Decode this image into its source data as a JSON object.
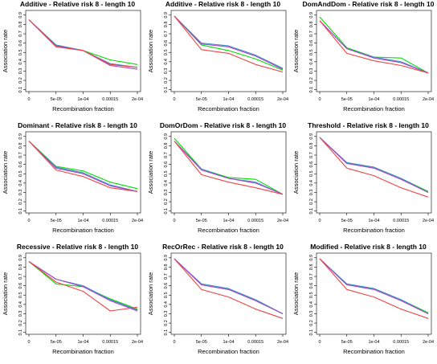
{
  "chart_data": [
    {
      "type": "line",
      "title": "Additive  - Relative risk 8 - length 10",
      "xlabel": "Recombination fraction",
      "ylabel": "Association rate",
      "categories": [
        "0",
        "5e-05",
        "1e-04",
        "0.00015",
        "2e-04"
      ],
      "ylim": [
        0.08,
        0.95
      ],
      "yticks": [
        "0.1",
        "0.2",
        "0.3",
        "0.4",
        "0.5",
        "0.6",
        "0.7",
        "0.8",
        "0.9"
      ],
      "series": [
        {
          "color": "#00dd00",
          "values": [
            0.85,
            0.58,
            0.52,
            0.42,
            0.37
          ]
        },
        {
          "color": "#3e8ec5",
          "values": [
            0.85,
            0.58,
            0.52,
            0.38,
            0.34
          ]
        },
        {
          "color": "#aa44cc",
          "values": [
            0.85,
            0.57,
            0.52,
            0.36,
            0.32
          ]
        },
        {
          "color": "#ee4444",
          "values": [
            0.85,
            0.56,
            0.52,
            0.37,
            0.34
          ]
        }
      ]
    },
    {
      "type": "line",
      "title": "Additive  - Relative risk 8 - length 10",
      "xlabel": "Recombination fraction",
      "ylabel": "Association rate",
      "categories": [
        "0",
        "5e-05",
        "1e-04",
        "0.00015",
        "2e-04"
      ],
      "ylim": [
        0.08,
        0.95
      ],
      "yticks": [
        "0.1",
        "0.2",
        "0.3",
        "0.4",
        "0.5",
        "0.6",
        "0.7",
        "0.8",
        "0.9"
      ],
      "series": [
        {
          "color": "#00dd00",
          "values": [
            0.89,
            0.58,
            0.52,
            0.43,
            0.31
          ]
        },
        {
          "color": "#3e8ec5",
          "values": [
            0.89,
            0.6,
            0.57,
            0.47,
            0.33
          ]
        },
        {
          "color": "#aa44cc",
          "values": [
            0.89,
            0.59,
            0.56,
            0.46,
            0.32
          ]
        },
        {
          "color": "#ee4444",
          "values": [
            0.89,
            0.53,
            0.49,
            0.37,
            0.29
          ]
        }
      ]
    },
    {
      "type": "line",
      "title": "DomAndDom  - Relative risk 8 - length 10",
      "xlabel": "Recombination fraction",
      "ylabel": "Association rate",
      "categories": [
        "0",
        "5e-05",
        "1e-04",
        "0.00015",
        "2e-04"
      ],
      "ylim": [
        0.08,
        0.95
      ],
      "yticks": [
        "0.1",
        "0.2",
        "0.3",
        "0.4",
        "0.5",
        "0.6",
        "0.7",
        "0.8",
        "0.9"
      ],
      "series": [
        {
          "color": "#00dd00",
          "values": [
            0.88,
            0.55,
            0.45,
            0.44,
            0.28
          ]
        },
        {
          "color": "#3e8ec5",
          "values": [
            0.84,
            0.54,
            0.45,
            0.4,
            0.28
          ]
        },
        {
          "color": "#aa44cc",
          "values": [
            0.84,
            0.54,
            0.44,
            0.39,
            0.28
          ]
        },
        {
          "color": "#ee4444",
          "values": [
            0.84,
            0.49,
            0.41,
            0.36,
            0.28
          ]
        }
      ]
    },
    {
      "type": "line",
      "title": "Dominant  - Relative risk 8 - length 10",
      "xlabel": "Recombination fraction",
      "ylabel": "Association rate",
      "categories": [
        "0",
        "5e-05",
        "1e-04",
        "0.00015",
        "2e-04"
      ],
      "ylim": [
        0.08,
        0.95
      ],
      "yticks": [
        "0.1",
        "0.2",
        "0.3",
        "0.4",
        "0.5",
        "0.6",
        "0.7",
        "0.8",
        "0.9"
      ],
      "series": [
        {
          "color": "#00dd00",
          "values": [
            0.85,
            0.58,
            0.53,
            0.41,
            0.34
          ]
        },
        {
          "color": "#3e8ec5",
          "values": [
            0.85,
            0.57,
            0.51,
            0.38,
            0.31
          ]
        },
        {
          "color": "#aa44cc",
          "values": [
            0.85,
            0.56,
            0.5,
            0.37,
            0.31
          ]
        },
        {
          "color": "#ee4444",
          "values": [
            0.85,
            0.54,
            0.47,
            0.35,
            0.31
          ]
        }
      ]
    },
    {
      "type": "line",
      "title": "DomOrDom  - Relative risk 8 - length 10",
      "xlabel": "Recombination fraction",
      "ylabel": "Association rate",
      "categories": [
        "0",
        "5e-05",
        "1e-04",
        "0.00015",
        "2e-04"
      ],
      "ylim": [
        0.08,
        0.95
      ],
      "yticks": [
        "0.1",
        "0.2",
        "0.3",
        "0.4",
        "0.5",
        "0.6",
        "0.7",
        "0.8",
        "0.9"
      ],
      "series": [
        {
          "color": "#00dd00",
          "values": [
            0.88,
            0.55,
            0.46,
            0.44,
            0.28
          ]
        },
        {
          "color": "#3e8ec5",
          "values": [
            0.85,
            0.55,
            0.45,
            0.41,
            0.28
          ]
        },
        {
          "color": "#aa44cc",
          "values": [
            0.85,
            0.54,
            0.45,
            0.4,
            0.28
          ]
        },
        {
          "color": "#ee4444",
          "values": [
            0.85,
            0.49,
            0.41,
            0.35,
            0.28
          ]
        }
      ]
    },
    {
      "type": "line",
      "title": "Threshold  - Relative risk 8 - length 10",
      "xlabel": "Recombination fraction",
      "ylabel": "Association rate",
      "categories": [
        "0",
        "5e-05",
        "1e-04",
        "0.00015",
        "2e-04"
      ],
      "ylim": [
        0.08,
        0.95
      ],
      "yticks": [
        "0.1",
        "0.2",
        "0.3",
        "0.4",
        "0.5",
        "0.6",
        "0.7",
        "0.8",
        "0.9"
      ],
      "series": [
        {
          "color": "#00dd00",
          "values": [
            0.89,
            0.61,
            0.57,
            0.45,
            0.31
          ]
        },
        {
          "color": "#3e8ec5",
          "values": [
            0.89,
            0.62,
            0.57,
            0.45,
            0.3
          ]
        },
        {
          "color": "#aa44cc",
          "values": [
            0.89,
            0.61,
            0.56,
            0.44,
            0.3
          ]
        },
        {
          "color": "#ee4444",
          "values": [
            0.89,
            0.56,
            0.48,
            0.35,
            0.25
          ]
        }
      ]
    },
    {
      "type": "line",
      "title": "Recessive  - Relative risk 8 - length 10",
      "xlabel": "Recombination fraction",
      "ylabel": "Association rate",
      "categories": [
        "0",
        "5e-05",
        "1e-04",
        "0.00015",
        "2e-04"
      ],
      "ylim": [
        0.08,
        0.95
      ],
      "yticks": [
        "0.1",
        "0.2",
        "0.3",
        "0.4",
        "0.5",
        "0.6",
        "0.7",
        "0.8",
        "0.9"
      ],
      "series": [
        {
          "color": "#00dd00",
          "values": [
            0.86,
            0.62,
            0.59,
            0.46,
            0.35
          ]
        },
        {
          "color": "#3e8ec5",
          "values": [
            0.86,
            0.67,
            0.6,
            0.45,
            0.34
          ]
        },
        {
          "color": "#aa44cc",
          "values": [
            0.86,
            0.67,
            0.59,
            0.44,
            0.33
          ]
        },
        {
          "color": "#ee4444",
          "values": [
            0.86,
            0.64,
            0.54,
            0.33,
            0.37
          ]
        }
      ]
    },
    {
      "type": "line",
      "title": "RecOrRec  - Relative risk 8 - length 10",
      "xlabel": "Recombination fraction",
      "ylabel": "Association rate",
      "categories": [
        "0",
        "5e-05",
        "1e-04",
        "0.00015",
        "2e-04"
      ],
      "ylim": [
        0.08,
        0.95
      ],
      "yticks": [
        "0.1",
        "0.2",
        "0.3",
        "0.4",
        "0.5",
        "0.6",
        "0.7",
        "0.8",
        "0.9"
      ],
      "series": [
        {
          "color": "#00dd00",
          "values": [
            0.89,
            0.61,
            0.56,
            0.44,
            0.3
          ]
        },
        {
          "color": "#3e8ec5",
          "values": [
            0.89,
            0.62,
            0.57,
            0.45,
            0.3
          ]
        },
        {
          "color": "#aa44cc",
          "values": [
            0.89,
            0.61,
            0.56,
            0.44,
            0.3
          ]
        },
        {
          "color": "#ee4444",
          "values": [
            0.89,
            0.56,
            0.48,
            0.35,
            0.25
          ]
        }
      ]
    },
    {
      "type": "line",
      "title": "Modified  - Relative risk 8 - length 10",
      "xlabel": "Recombination fraction",
      "ylabel": "Association rate",
      "categories": [
        "0",
        "5e-05",
        "1e-04",
        "0.00015",
        "2e-04"
      ],
      "ylim": [
        0.08,
        0.95
      ],
      "yticks": [
        "0.1",
        "0.2",
        "0.3",
        "0.4",
        "0.5",
        "0.6",
        "0.7",
        "0.8",
        "0.9"
      ],
      "series": [
        {
          "color": "#00dd00",
          "values": [
            0.89,
            0.61,
            0.57,
            0.45,
            0.31
          ]
        },
        {
          "color": "#3e8ec5",
          "values": [
            0.89,
            0.62,
            0.57,
            0.45,
            0.3
          ]
        },
        {
          "color": "#aa44cc",
          "values": [
            0.89,
            0.61,
            0.56,
            0.44,
            0.3
          ]
        },
        {
          "color": "#ee4444",
          "values": [
            0.89,
            0.56,
            0.48,
            0.35,
            0.25
          ]
        }
      ]
    }
  ]
}
